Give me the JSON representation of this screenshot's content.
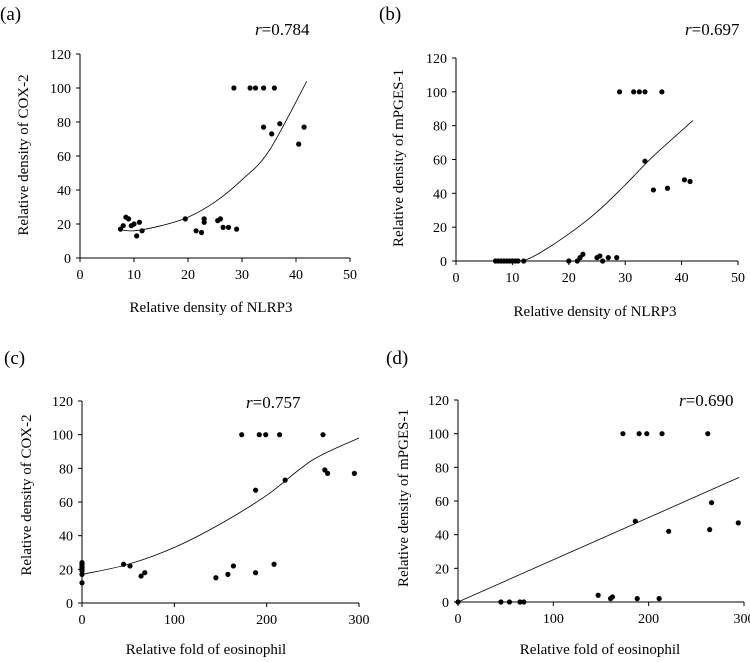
{
  "chart_data": [
    {
      "type": "scatter",
      "panel_label": "(a)",
      "r_symbol": "r",
      "r_value": "=0.784",
      "xlabel": "Relative density of NLRP3",
      "ylabel": "Relative density of COX-2",
      "xlim": [
        0,
        50
      ],
      "ylim": [
        0,
        120
      ],
      "xticks": [
        0,
        10,
        20,
        30,
        40,
        50
      ],
      "yticks": [
        0,
        20,
        40,
        60,
        80,
        100,
        120
      ],
      "trendline": {
        "type": "polynomial-2",
        "points": [
          [
            7,
            17
          ],
          [
            10,
            16
          ],
          [
            15,
            19
          ],
          [
            20,
            24
          ],
          [
            25,
            33
          ],
          [
            30,
            46
          ],
          [
            35,
            63
          ],
          [
            42,
            104
          ]
        ]
      },
      "points": [
        [
          7.5,
          17
        ],
        [
          8,
          19
        ],
        [
          8.5,
          24
        ],
        [
          9,
          23
        ],
        [
          9.5,
          19
        ],
        [
          10,
          20
        ],
        [
          10.5,
          13
        ],
        [
          11,
          21
        ],
        [
          11.5,
          16
        ],
        [
          19.5,
          23
        ],
        [
          21.5,
          16
        ],
        [
          22.5,
          15
        ],
        [
          23,
          21
        ],
        [
          23,
          23
        ],
        [
          25.5,
          22
        ],
        [
          26,
          23
        ],
        [
          26.5,
          18
        ],
        [
          27.5,
          18
        ],
        [
          29,
          17
        ],
        [
          28.5,
          100
        ],
        [
          31.5,
          100
        ],
        [
          32.5,
          100
        ],
        [
          34,
          100
        ],
        [
          36,
          100
        ],
        [
          34,
          77
        ],
        [
          35.5,
          73
        ],
        [
          37,
          79
        ],
        [
          40.5,
          67
        ],
        [
          41.5,
          77
        ]
      ]
    },
    {
      "type": "scatter",
      "panel_label": "(b)",
      "r_symbol": "r",
      "r_value": "=0.697",
      "xlabel": "Relative density of NLRP3",
      "ylabel": "Relative density of mPGES-1",
      "xlim": [
        0,
        50
      ],
      "ylim": [
        0,
        120
      ],
      "xticks": [
        0,
        10,
        20,
        30,
        40,
        50
      ],
      "yticks": [
        0,
        20,
        40,
        60,
        80,
        100,
        120
      ],
      "trendline": {
        "type": "polynomial-2",
        "points": [
          [
            12,
            0
          ],
          [
            15,
            5
          ],
          [
            20,
            16
          ],
          [
            25,
            29
          ],
          [
            30,
            45
          ],
          [
            35,
            62
          ],
          [
            42,
            83
          ]
        ]
      },
      "points": [
        [
          7,
          0
        ],
        [
          7.5,
          0
        ],
        [
          8,
          0
        ],
        [
          8.5,
          0
        ],
        [
          9,
          0
        ],
        [
          9.5,
          0
        ],
        [
          10,
          0
        ],
        [
          10.5,
          0
        ],
        [
          11,
          0
        ],
        [
          12,
          0
        ],
        [
          20,
          0
        ],
        [
          21.5,
          0
        ],
        [
          22,
          2
        ],
        [
          22.5,
          4
        ],
        [
          25,
          2
        ],
        [
          25.5,
          3
        ],
        [
          26,
          0
        ],
        [
          27,
          2
        ],
        [
          28.5,
          2
        ],
        [
          29,
          100
        ],
        [
          31.5,
          100
        ],
        [
          32.5,
          100
        ],
        [
          33.5,
          100
        ],
        [
          36.5,
          100
        ],
        [
          33.5,
          59
        ],
        [
          35,
          42
        ],
        [
          37.5,
          43
        ],
        [
          40.5,
          48
        ],
        [
          41.5,
          47
        ]
      ]
    },
    {
      "type": "scatter",
      "panel_label": "(c)",
      "r_symbol": "r",
      "r_value": "=0.757",
      "xlabel": "Relative fold of eosinophil",
      "ylabel": "Relative density of COX-2",
      "xlim": [
        0,
        300
      ],
      "ylim": [
        0,
        120
      ],
      "xticks": [
        0,
        100,
        200,
        300
      ],
      "yticks": [
        0,
        20,
        40,
        60,
        80,
        100,
        120
      ],
      "trendline": {
        "type": "polynomial-2",
        "points": [
          [
            0,
            17
          ],
          [
            50,
            23
          ],
          [
            100,
            33
          ],
          [
            150,
            47
          ],
          [
            200,
            64
          ],
          [
            250,
            85
          ],
          [
            300,
            98
          ]
        ]
      },
      "points": [
        [
          0,
          12
        ],
        [
          0,
          17
        ],
        [
          0,
          19
        ],
        [
          0,
          20
        ],
        [
          0,
          21
        ],
        [
          0,
          22
        ],
        [
          0,
          23
        ],
        [
          0,
          24
        ],
        [
          45,
          23
        ],
        [
          52,
          22
        ],
        [
          64,
          16
        ],
        [
          68,
          18
        ],
        [
          145,
          15
        ],
        [
          158,
          17
        ],
        [
          164,
          22
        ],
        [
          173,
          100
        ],
        [
          188,
          18
        ],
        [
          188,
          67
        ],
        [
          192,
          100
        ],
        [
          199,
          100
        ],
        [
          208,
          23
        ],
        [
          214,
          100
        ],
        [
          220,
          73
        ],
        [
          261,
          100
        ],
        [
          263,
          79
        ],
        [
          266,
          77
        ],
        [
          295,
          77
        ]
      ]
    },
    {
      "type": "scatter",
      "panel_label": "(d)",
      "r_symbol": "r",
      "r_value": "=0.690",
      "xlabel": "Relative fold of eosinophil",
      "ylabel": "Relative density of mPGES-1",
      "xlim": [
        0,
        300
      ],
      "ylim": [
        0,
        120
      ],
      "xticks": [
        0,
        100,
        200,
        300
      ],
      "yticks": [
        0,
        20,
        40,
        60,
        80,
        100,
        120
      ],
      "trendline": {
        "type": "linear",
        "points": [
          [
            0,
            0
          ],
          [
            295,
            74
          ]
        ]
      },
      "points": [
        [
          0,
          0
        ],
        [
          45,
          0
        ],
        [
          54,
          0
        ],
        [
          65,
          0
        ],
        [
          69,
          0
        ],
        [
          147,
          4
        ],
        [
          160,
          2
        ],
        [
          162,
          3
        ],
        [
          173,
          100
        ],
        [
          186,
          48
        ],
        [
          188,
          2
        ],
        [
          190,
          100
        ],
        [
          198,
          100
        ],
        [
          211,
          2
        ],
        [
          214,
          100
        ],
        [
          221,
          42
        ],
        [
          262,
          100
        ],
        [
          264,
          43
        ],
        [
          266,
          59
        ],
        [
          294,
          47
        ]
      ]
    }
  ]
}
